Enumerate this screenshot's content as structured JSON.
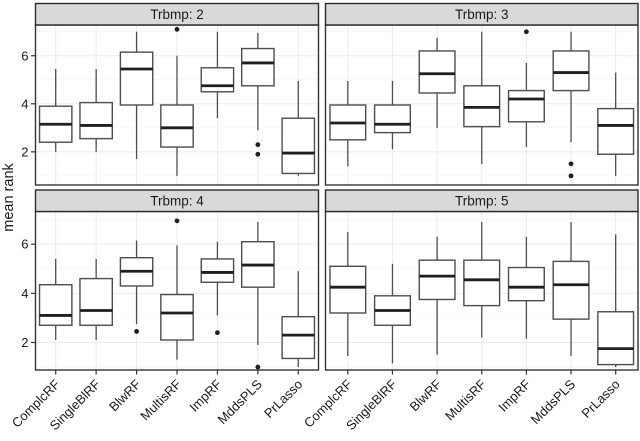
{
  "figure_title": "",
  "style": {
    "background": "#ffffff",
    "panel_border": "#333333",
    "strip_fill": "#d9d9d9",
    "strip_border": "#2b2b2b",
    "box_fill": "#ffffff",
    "box_stroke": "#4d4d4d",
    "whisker_color": "#4d4d4d",
    "median_color": "#1f1f1f",
    "outlier_color": "#1f1f1f",
    "grid_major": "#ebebeb",
    "grid_minor": "#f6f6f6",
    "text_color": "#1a1a1a"
  },
  "chart_data": {
    "type": "boxplot",
    "title": "",
    "ylabel": "mean rank",
    "xlabel": "",
    "y_ticks": [
      2,
      4,
      6
    ],
    "y_minor_ticks": [
      1,
      3,
      5,
      7
    ],
    "ylim": [
      0.6,
      7.3
    ],
    "categories": [
      "ComplcRF",
      "SingleBlRF",
      "BlwRF",
      "MultisRF",
      "ImpRF",
      "MddsPLS",
      "PrLasso"
    ],
    "facets": [
      {
        "title": "Trbmp: 2",
        "boxes": [
          {
            "method": "ComplcRF",
            "whisker_low": 2.0,
            "q1": 2.4,
            "median": 3.15,
            "q3": 3.9,
            "whisker_high": 5.45,
            "outliers": []
          },
          {
            "method": "SingleBlRF",
            "whisker_low": 2.0,
            "q1": 2.55,
            "median": 3.1,
            "q3": 4.05,
            "whisker_high": 5.45,
            "outliers": []
          },
          {
            "method": "BlwRF",
            "whisker_low": 1.7,
            "q1": 3.95,
            "median": 5.45,
            "q3": 6.15,
            "whisker_high": 7.0,
            "outliers": []
          },
          {
            "method": "MultisRF",
            "whisker_low": 1.0,
            "q1": 2.2,
            "median": 3.0,
            "q3": 3.95,
            "whisker_high": 6.0,
            "outliers": [
              7.1
            ]
          },
          {
            "method": "ImpRF",
            "whisker_low": 3.4,
            "q1": 4.5,
            "median": 4.75,
            "q3": 5.5,
            "whisker_high": 7.0,
            "outliers": []
          },
          {
            "method": "MddsPLS",
            "whisker_low": 2.9,
            "q1": 4.75,
            "median": 5.7,
            "q3": 6.3,
            "whisker_high": 6.95,
            "outliers": [
              2.3,
              1.9
            ]
          },
          {
            "method": "PrLasso",
            "whisker_low": 1.0,
            "q1": 1.1,
            "median": 1.95,
            "q3": 3.4,
            "whisker_high": 4.95,
            "outliers": []
          }
        ]
      },
      {
        "title": "Trbmp: 3",
        "boxes": [
          {
            "method": "ComplcRF",
            "whisker_low": 1.4,
            "q1": 2.5,
            "median": 3.2,
            "q3": 3.95,
            "whisker_high": 4.95,
            "outliers": []
          },
          {
            "method": "SingleBlRF",
            "whisker_low": 2.1,
            "q1": 2.8,
            "median": 3.15,
            "q3": 3.95,
            "whisker_high": 4.95,
            "outliers": []
          },
          {
            "method": "BlwRF",
            "whisker_low": 3.0,
            "q1": 4.45,
            "median": 5.25,
            "q3": 6.2,
            "whisker_high": 6.75,
            "outliers": []
          },
          {
            "method": "MultisRF",
            "whisker_low": 1.5,
            "q1": 3.05,
            "median": 3.85,
            "q3": 4.75,
            "whisker_high": 7.0,
            "outliers": []
          },
          {
            "method": "ImpRF",
            "whisker_low": 2.2,
            "q1": 3.25,
            "median": 4.2,
            "q3": 4.55,
            "whisker_high": 5.7,
            "outliers": [
              7.0
            ]
          },
          {
            "method": "MddsPLS",
            "whisker_low": 2.4,
            "q1": 4.55,
            "median": 5.3,
            "q3": 6.2,
            "whisker_high": 7.0,
            "outliers": [
              1.5,
              1.0
            ]
          },
          {
            "method": "PrLasso",
            "whisker_low": 1.0,
            "q1": 1.9,
            "median": 3.1,
            "q3": 3.8,
            "whisker_high": 5.3,
            "outliers": []
          }
        ]
      },
      {
        "title": "Trbmp: 4",
        "boxes": [
          {
            "method": "ComplcRF",
            "whisker_low": 2.1,
            "q1": 2.7,
            "median": 3.1,
            "q3": 4.35,
            "whisker_high": 5.4,
            "outliers": []
          },
          {
            "method": "SingleBlRF",
            "whisker_low": 2.1,
            "q1": 2.7,
            "median": 3.3,
            "q3": 4.6,
            "whisker_high": 5.4,
            "outliers": []
          },
          {
            "method": "BlwRF",
            "whisker_low": 2.75,
            "q1": 4.3,
            "median": 4.9,
            "q3": 5.45,
            "whisker_high": 6.15,
            "outliers": [
              2.45
            ]
          },
          {
            "method": "MultisRF",
            "whisker_low": 1.3,
            "q1": 2.1,
            "median": 3.2,
            "q3": 3.95,
            "whisker_high": 5.95,
            "outliers": [
              6.95
            ]
          },
          {
            "method": "ImpRF",
            "whisker_low": 3.1,
            "q1": 4.45,
            "median": 4.85,
            "q3": 5.4,
            "whisker_high": 6.1,
            "outliers": [
              2.4
            ]
          },
          {
            "method": "MddsPLS",
            "whisker_low": 1.9,
            "q1": 4.25,
            "median": 5.15,
            "q3": 6.1,
            "whisker_high": 6.9,
            "outliers": [
              1.0
            ]
          },
          {
            "method": "PrLasso",
            "whisker_low": 1.0,
            "q1": 1.35,
            "median": 2.3,
            "q3": 3.05,
            "whisker_high": 4.9,
            "outliers": []
          }
        ]
      },
      {
        "title": "Trbmp: 5",
        "boxes": [
          {
            "method": "ComplcRF",
            "whisker_low": 1.45,
            "q1": 3.2,
            "median": 4.25,
            "q3": 5.1,
            "whisker_high": 6.5,
            "outliers": []
          },
          {
            "method": "SingleBlRF",
            "whisker_low": 1.15,
            "q1": 2.7,
            "median": 3.3,
            "q3": 3.9,
            "whisker_high": 5.2,
            "outliers": []
          },
          {
            "method": "BlwRF",
            "whisker_low": 1.5,
            "q1": 3.75,
            "median": 4.7,
            "q3": 5.35,
            "whisker_high": 6.3,
            "outliers": []
          },
          {
            "method": "MultisRF",
            "whisker_low": 2.2,
            "q1": 3.5,
            "median": 4.55,
            "q3": 5.35,
            "whisker_high": 6.9,
            "outliers": []
          },
          {
            "method": "ImpRF",
            "whisker_low": 2.15,
            "q1": 3.7,
            "median": 4.25,
            "q3": 5.05,
            "whisker_high": 6.3,
            "outliers": []
          },
          {
            "method": "MddsPLS",
            "whisker_low": 1.45,
            "q1": 2.95,
            "median": 4.35,
            "q3": 5.3,
            "whisker_high": 6.9,
            "outliers": []
          },
          {
            "method": "PrLasso",
            "whisker_low": 1.0,
            "q1": 1.1,
            "median": 1.75,
            "q3": 3.25,
            "whisker_high": 6.4,
            "outliers": []
          }
        ]
      }
    ],
    "legend": null,
    "grid": true
  }
}
